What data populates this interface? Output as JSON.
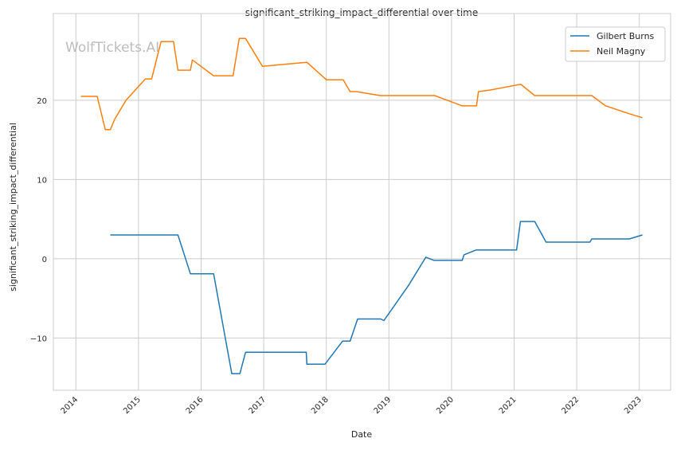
{
  "chart_data": {
    "type": "line",
    "title": "significant_striking_impact_differential over time",
    "xlabel": "Date",
    "ylabel": "significant_striking_impact_differential",
    "xlim": [
      2013.64,
      2023.5
    ],
    "ylim": [
      -16.6,
      30.95
    ],
    "x_ticks": [
      2014,
      2015,
      2016,
      2017,
      2018,
      2019,
      2020,
      2021,
      2022,
      2023
    ],
    "x_tick_labels": [
      "2014",
      "2015",
      "2016",
      "2017",
      "2018",
      "2019",
      "2020",
      "2021",
      "2022",
      "2023"
    ],
    "y_ticks": [
      -10,
      0,
      10,
      20
    ],
    "y_tick_labels": [
      "−10",
      "0",
      "10",
      "20"
    ],
    "grid": true,
    "legend_position": "top-right",
    "watermark": "WolfTickets.AI",
    "series": [
      {
        "name": "Gilbert Burns",
        "color": "#1f77b4",
        "x": [
          2014.55,
          2015.63,
          2015.83,
          2016.2,
          2016.49,
          2016.62,
          2016.71,
          2017.68,
          2017.69,
          2017.98,
          2018.26,
          2018.38,
          2018.5,
          2018.87,
          2018.92,
          2019.31,
          2019.59,
          2019.72,
          2020.17,
          2020.2,
          2020.39,
          2021.04,
          2021.1,
          2021.33,
          2021.51,
          2022.21,
          2022.24,
          2022.84,
          2023.05
        ],
        "y": [
          3.0,
          3.0,
          -1.9,
          -1.9,
          -14.5,
          -14.5,
          -11.8,
          -11.8,
          -13.3,
          -13.3,
          -10.4,
          -10.4,
          -7.6,
          -7.6,
          -7.8,
          -3.4,
          0.2,
          -0.2,
          -0.2,
          0.5,
          1.1,
          1.1,
          4.7,
          4.7,
          2.1,
          2.1,
          2.5,
          2.5,
          3.0
        ]
      },
      {
        "name": "Neil Magny",
        "color": "#ff7f0e",
        "x": [
          2014.08,
          2014.34,
          2014.47,
          2014.55,
          2014.62,
          2014.8,
          2015.11,
          2015.21,
          2015.36,
          2015.56,
          2015.63,
          2015.83,
          2015.86,
          2016.2,
          2016.51,
          2016.61,
          2016.71,
          2016.98,
          2017.69,
          2018.0,
          2018.27,
          2018.38,
          2018.48,
          2018.86,
          2019.73,
          2020.17,
          2020.4,
          2020.43,
          2020.62,
          2021.09,
          2021.11,
          2021.33,
          2022.24,
          2022.46,
          2022.84,
          2023.05
        ],
        "y": [
          20.5,
          20.5,
          16.3,
          16.3,
          17.6,
          20.0,
          22.7,
          22.7,
          27.4,
          27.4,
          23.8,
          23.8,
          25.1,
          23.1,
          23.1,
          27.8,
          27.8,
          24.3,
          24.8,
          22.6,
          22.6,
          21.1,
          21.1,
          20.6,
          20.6,
          19.3,
          19.3,
          21.1,
          21.3,
          22.0,
          22.0,
          20.6,
          20.6,
          19.3,
          18.3,
          17.8
        ]
      }
    ]
  }
}
